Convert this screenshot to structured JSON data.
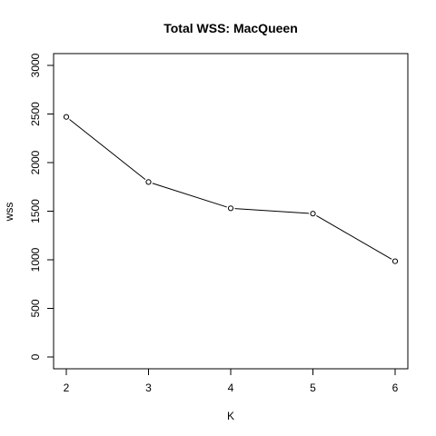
{
  "chart_data": {
    "type": "line",
    "title": "Total WSS: MacQueen",
    "xlabel": "K",
    "ylabel": "wss",
    "x": [
      2,
      3,
      4,
      5,
      6
    ],
    "series": [
      {
        "values": [
          2470,
          1800,
          1530,
          1475,
          985
        ]
      }
    ],
    "xlim": [
      2,
      6
    ],
    "ylim": [
      0,
      3000
    ],
    "x_ticks": [
      2,
      3,
      4,
      5,
      6
    ],
    "y_ticks": [
      0,
      500,
      1000,
      1500,
      2000,
      2500,
      3000
    ],
    "marker": "open-circle",
    "line_color": "#000000",
    "grid": false,
    "legend": "none"
  }
}
